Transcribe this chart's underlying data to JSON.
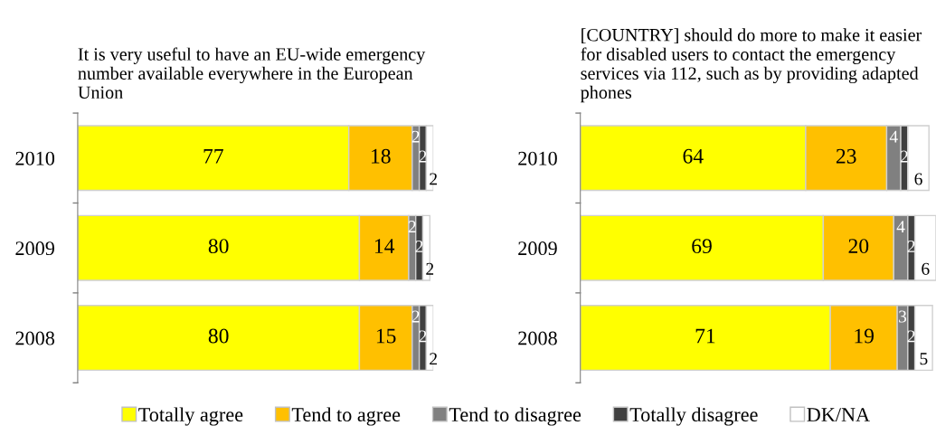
{
  "chart_data": [
    {
      "type": "bar",
      "orientation": "horizontal",
      "stacked": true,
      "data_labels": true,
      "legend": "bottom",
      "title": "It is very useful to have an EU-wide emergency number available everywhere in the European Union",
      "categories": [
        "2010",
        "2009",
        "2008"
      ],
      "series": [
        {
          "name": "Totally agree",
          "color": "#ffff00",
          "values": [
            77,
            80,
            80
          ]
        },
        {
          "name": "Tend to agree",
          "color": "#ffc000",
          "values": [
            18,
            14,
            15
          ]
        },
        {
          "name": "Tend to disagree",
          "color": "#808080",
          "values": [
            2,
            2,
            2
          ]
        },
        {
          "name": "Totally disagree",
          "color": "#404040",
          "values": [
            2,
            2,
            2
          ]
        },
        {
          "name": "DK/NA",
          "color": "#ffffff",
          "values": [
            2,
            2,
            2
          ]
        }
      ]
    },
    {
      "type": "bar",
      "orientation": "horizontal",
      "stacked": true,
      "data_labels": true,
      "title": "[COUNTRY] should do more to make it easier for disabled users to contact the emergency services via 112, such as by providing adapted phones",
      "categories": [
        "2010",
        "2009",
        "2008"
      ],
      "series": [
        {
          "color": "#ffff00",
          "values": [
            64,
            69,
            71
          ]
        },
        {
          "color": "#ffc000",
          "values": [
            23,
            20,
            19
          ]
        },
        {
          "color": "#808080",
          "values": [
            4,
            4,
            3
          ]
        },
        {
          "color": "#404040",
          "values": [
            2,
            2,
            2
          ]
        },
        {
          "color": "#ffffff",
          "values": [
            6,
            6,
            5
          ]
        }
      ]
    }
  ]
}
